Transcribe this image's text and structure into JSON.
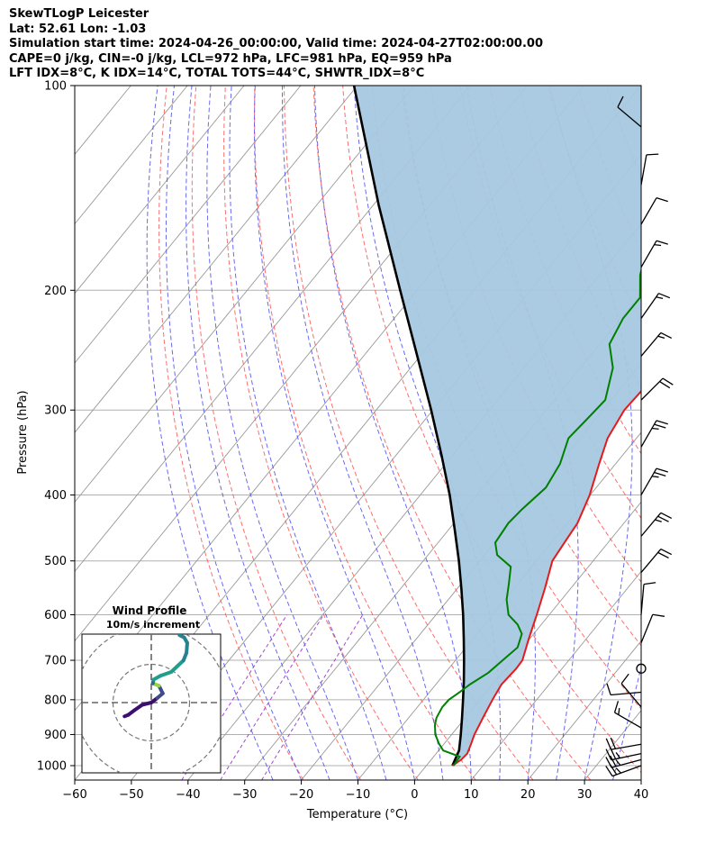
{
  "header": {
    "title_lines": [
      "SkewTLogP Leicester",
      "Lat: 52.61   Lon: -1.03",
      "Simulation start time: 2024-04-26_00:00:00, Valid time: 2024-04-27T02:00:00.00",
      "CAPE=0 j/kg, CIN=-0 j/kg, LCL=972 hPa, LFC=981 hPa, EQ=959 hPa",
      "LFT IDX=8°C, K IDX=14°C, TOTAL TOTS=44°C, SHWTR_IDX=8°C"
    ]
  },
  "colors": {
    "temperature": "#e41a1c",
    "dewpoint": "#008000",
    "parcel": "#000000",
    "shading": "#a6c8e0",
    "dry_adiabat": "#ff5555",
    "moist_adiabat": "#4444ee",
    "mixing_ratio": "#9933cc",
    "isotherm": "#999999",
    "grid": "#b0b0b0"
  },
  "chart_data": [
    {
      "type": "skewt-logp",
      "xlabel": "Temperature (°C)",
      "ylabel": "Pressure (hPa)",
      "xlim": [
        -60,
        40
      ],
      "ylim": [
        1050,
        100
      ],
      "y_scale": "log",
      "x_ticks": [
        -60,
        -50,
        -40,
        -30,
        -20,
        -10,
        0,
        10,
        20,
        30,
        40
      ],
      "y_ticks": [
        100,
        200,
        300,
        400,
        500,
        600,
        700,
        800,
        900,
        1000
      ],
      "x_tick_labels": [
        "−60",
        "−50",
        "−40",
        "−30",
        "−20",
        "−10",
        "0",
        "10",
        "20",
        "30",
        "40"
      ],
      "y_tick_labels": [
        "100",
        "200",
        "300",
        "400",
        "500",
        "600",
        "700",
        "800",
        "900",
        "1000"
      ],
      "grid": true,
      "series": [
        {
          "name": "",
          "role": "temperature",
          "points": [
            [
              1000,
              4.6
            ],
            [
              980,
              5.3
            ],
            [
              960,
              5.5
            ],
            [
              930,
              4.8
            ],
            [
              900,
              4.0
            ],
            [
              850,
              3.1
            ],
            [
              800,
              2.2
            ],
            [
              760,
              1.6
            ],
            [
              720,
              1.9
            ],
            [
              700,
              1.8
            ],
            [
              650,
              -0.2
            ],
            [
              600,
              -2.2
            ],
            [
              550,
              -4.5
            ],
            [
              500,
              -7.2
            ],
            [
              470,
              -7.7
            ],
            [
              440,
              -8.2
            ],
            [
              400,
              -10.1
            ],
            [
              360,
              -12.9
            ],
            [
              330,
              -15.1
            ],
            [
              300,
              -16.2
            ],
            [
              280,
              -15.9
            ],
            [
              260,
              -14.3
            ],
            [
              240,
              -12.8
            ],
            [
              220,
              -11.2
            ],
            [
              200,
              -9.5
            ],
            [
              185,
              -7.8
            ],
            [
              170,
              -6.8
            ],
            [
              155,
              -6.4
            ],
            [
              140,
              -4.8
            ],
            [
              130,
              -3.3
            ],
            [
              120,
              -2.8
            ],
            [
              110,
              -2.3
            ],
            [
              100,
              -1.9
            ]
          ]
        },
        {
          "name": "",
          "role": "dewpoint",
          "points": [
            [
              1000,
              4.8
            ],
            [
              970,
              4.6
            ],
            [
              950,
              0.8
            ],
            [
              930,
              -0.8
            ],
            [
              900,
              -2.9
            ],
            [
              870,
              -4.4
            ],
            [
              850,
              -5.1
            ],
            [
              820,
              -5.6
            ],
            [
              800,
              -5.5
            ],
            [
              780,
              -4.7
            ],
            [
              760,
              -4.0
            ],
            [
              730,
              -2.4
            ],
            [
              700,
              -1.7
            ],
            [
              670,
              -0.9
            ],
            [
              640,
              -2.1
            ],
            [
              620,
              -4.2
            ],
            [
              600,
              -7.2
            ],
            [
              570,
              -9.7
            ],
            [
              540,
              -11.6
            ],
            [
              510,
              -13.7
            ],
            [
              490,
              -17.8
            ],
            [
              470,
              -19.9
            ],
            [
              440,
              -20.4
            ],
            [
              420,
              -20.0
            ],
            [
              390,
              -18.9
            ],
            [
              360,
              -19.8
            ],
            [
              330,
              -22.0
            ],
            [
              310,
              -21.5
            ],
            [
              290,
              -21.0
            ],
            [
              260,
              -24.3
            ],
            [
              240,
              -28.3
            ],
            [
              220,
              -29.6
            ],
            [
              205,
              -29.6
            ],
            [
              190,
              -32.8
            ],
            [
              180,
              -34.4
            ],
            [
              170,
              -35.1
            ],
            [
              150,
              -36.5
            ],
            [
              135,
              -38.3
            ],
            [
              120,
              -42.2
            ],
            [
              110,
              -45.1
            ],
            [
              100,
              -48.5
            ]
          ]
        },
        {
          "name": "",
          "role": "parcel",
          "points": [
            [
              1000,
              4.6
            ],
            [
              950,
              3.6
            ],
            [
              900,
              1.6
            ],
            [
              850,
              -0.6
            ],
            [
              800,
              -3.0
            ],
            [
              750,
              -5.6
            ],
            [
              700,
              -8.5
            ],
            [
              650,
              -11.7
            ],
            [
              600,
              -15.2
            ],
            [
              550,
              -19.2
            ],
            [
              500,
              -23.7
            ],
            [
              450,
              -28.9
            ],
            [
              400,
              -34.8
            ],
            [
              350,
              -41.9
            ],
            [
              300,
              -50.3
            ],
            [
              250,
              -60.5
            ],
            [
              200,
              -73.0
            ],
            [
              150,
              -89.0
            ],
            [
              100,
              -110.6
            ]
          ]
        }
      ],
      "wind_barbs": [
        {
          "p": 1000,
          "dir": 250,
          "spd": 25
        },
        {
          "p": 980,
          "dir": 255,
          "spd": 25
        },
        {
          "p": 960,
          "dir": 258,
          "spd": 25
        },
        {
          "p": 930,
          "dir": 260,
          "spd": 20
        },
        {
          "p": 880,
          "dir": 300,
          "spd": 15
        },
        {
          "p": 820,
          "dir": 320,
          "spd": 10
        },
        {
          "p": 780,
          "dir": 265,
          "spd": 10
        },
        {
          "p": 720,
          "dir": 0,
          "spd": 0
        },
        {
          "p": 660,
          "dir": 22,
          "spd": 10
        },
        {
          "p": 600,
          "dir": 5,
          "spd": 10
        },
        {
          "p": 520,
          "dir": 40,
          "spd": 20
        },
        {
          "p": 460,
          "dir": 40,
          "spd": 25
        },
        {
          "p": 400,
          "dir": 30,
          "spd": 25
        },
        {
          "p": 340,
          "dir": 30,
          "spd": 25
        },
        {
          "p": 290,
          "dir": 45,
          "spd": 20
        },
        {
          "p": 250,
          "dir": 40,
          "spd": 15
        },
        {
          "p": 220,
          "dir": 35,
          "spd": 15
        },
        {
          "p": 185,
          "dir": 30,
          "spd": 15
        },
        {
          "p": 160,
          "dir": 30,
          "spd": 10
        },
        {
          "p": 140,
          "dir": 10,
          "spd": 10
        },
        {
          "p": 115,
          "dir": 310,
          "spd": 10
        }
      ]
    },
    {
      "type": "hodograph",
      "title": "Wind Profile",
      "subtitle": "10m/s increment",
      "ring_increment": 10,
      "rings": [
        10,
        20,
        30
      ],
      "points": [
        [
          -3.5,
          -1.8
        ],
        [
          -3.0,
          -1.6
        ],
        [
          -2.2,
          -1.0
        ],
        [
          -1.2,
          -0.3
        ],
        [
          0.0,
          0.0
        ],
        [
          0.8,
          0.6
        ],
        [
          1.5,
          1.2
        ],
        [
          1.0,
          2.2
        ],
        [
          0.2,
          2.5
        ],
        [
          0.3,
          3.0
        ],
        [
          1.2,
          3.5
        ],
        [
          2.6,
          4.0
        ],
        [
          4.2,
          5.5
        ],
        [
          4.6,
          6.5
        ],
        [
          4.7,
          7.8
        ],
        [
          4.3,
          8.5
        ],
        [
          3.7,
          8.8
        ]
      ]
    }
  ]
}
